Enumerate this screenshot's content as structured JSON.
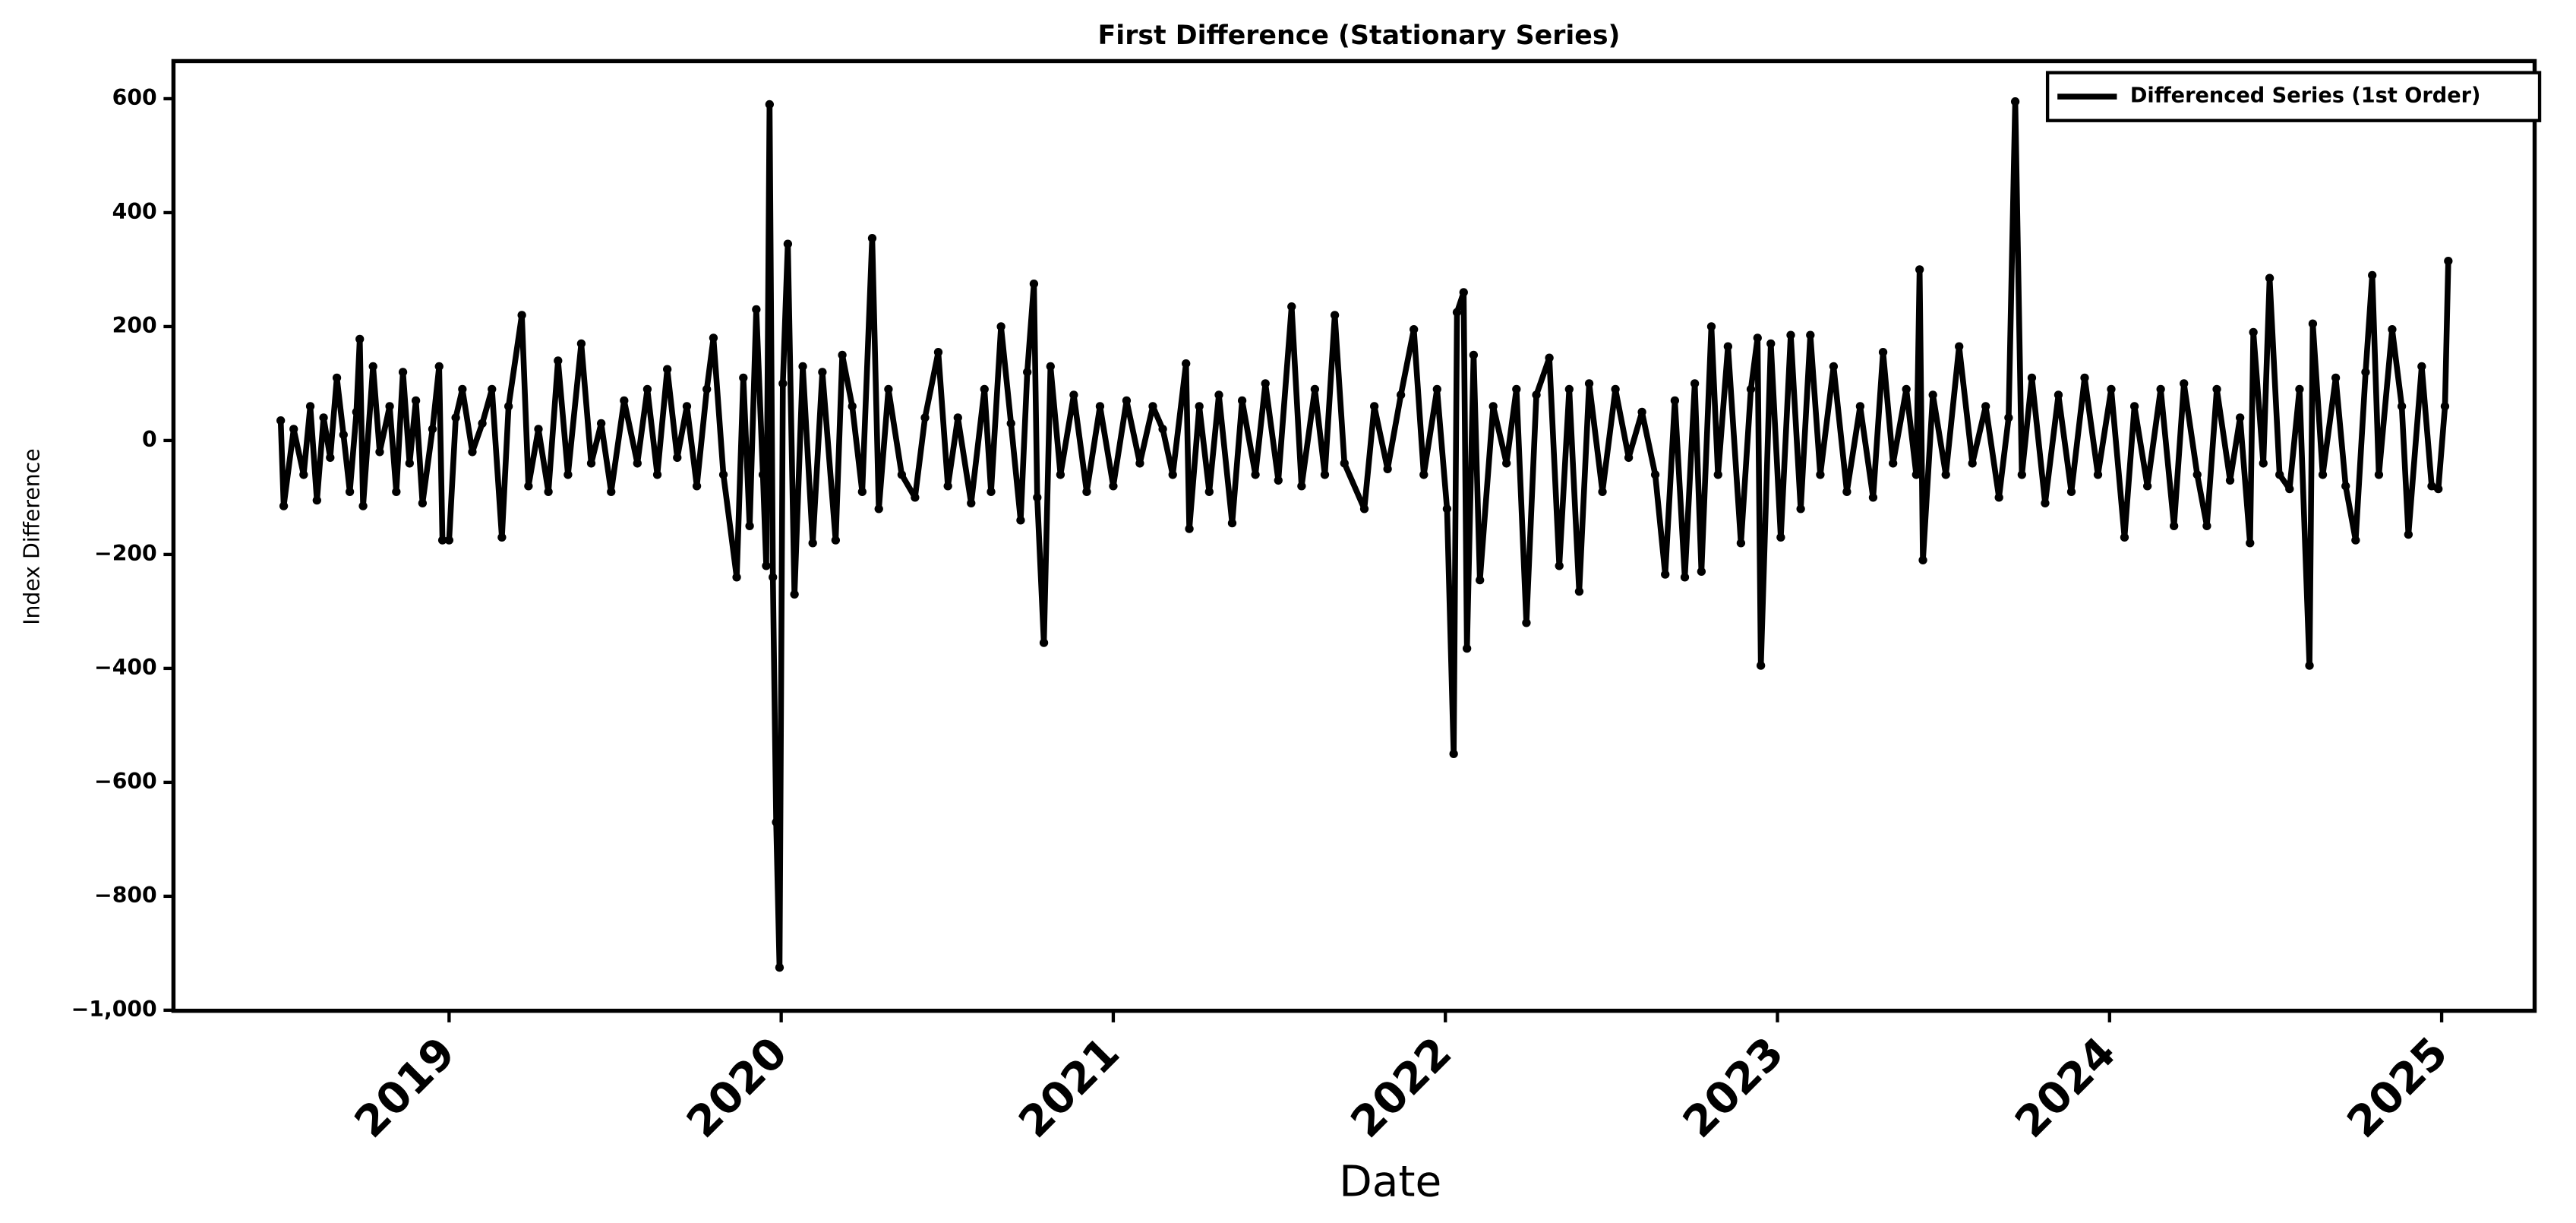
{
  "chart_data": {
    "type": "line",
    "title": "First Difference (Stationary Series)",
    "x_label": "Date",
    "y_label": "Index Difference",
    "x": [
      2018.493,
      2018.502,
      2018.532,
      2018.562,
      2018.582,
      2018.602,
      2018.622,
      2018.642,
      2018.662,
      2018.682,
      2018.701,
      2018.721,
      2018.731,
      2018.741,
      2018.771,
      2018.791,
      2018.821,
      2018.841,
      2018.861,
      2018.881,
      2018.9,
      2018.92,
      2018.95,
      2018.97,
      2018.98,
      2019.0,
      2019.02,
      2019.04,
      2019.07,
      2019.1,
      2019.129,
      2019.159,
      2019.179,
      2019.219,
      2019.239,
      2019.269,
      2019.299,
      2019.328,
      2019.358,
      2019.398,
      2019.428,
      2019.458,
      2019.488,
      2019.527,
      2019.567,
      2019.597,
      2019.627,
      2019.657,
      2019.687,
      2019.716,
      2019.746,
      2019.776,
      2019.796,
      2019.826,
      2019.866,
      2019.886,
      2019.905,
      2019.925,
      2019.945,
      2019.955,
      2019.965,
      2019.975,
      2019.985,
      2019.995,
      2020.005,
      2020.02,
      2020.04,
      2020.065,
      2020.095,
      2020.124,
      2020.164,
      2020.184,
      2020.214,
      2020.244,
      2020.274,
      2020.294,
      2020.323,
      2020.363,
      2020.403,
      2020.433,
      2020.473,
      2020.502,
      2020.532,
      2020.572,
      2020.612,
      2020.632,
      2020.662,
      2020.692,
      2020.721,
      2020.741,
      2020.761,
      2020.771,
      2020.791,
      2020.811,
      2020.841,
      2020.881,
      2020.92,
      2020.96,
      2021.0,
      2021.04,
      2021.08,
      2021.119,
      2021.149,
      2021.179,
      2021.219,
      2021.229,
      2021.259,
      2021.289,
      2021.318,
      2021.358,
      2021.388,
      2021.428,
      2021.458,
      2021.497,
      2021.537,
      2021.567,
      2021.607,
      2021.637,
      2021.667,
      2021.696,
      2021.756,
      2021.786,
      2021.826,
      2021.866,
      2021.905,
      2021.935,
      2021.975,
      2022.005,
      2022.025,
      2022.035,
      2022.055,
      2022.065,
      2022.085,
      2022.104,
      2022.144,
      2022.184,
      2022.214,
      2022.244,
      2022.274,
      2022.313,
      2022.343,
      2022.373,
      2022.403,
      2022.433,
      2022.473,
      2022.512,
      2022.552,
      2022.592,
      2022.632,
      2022.662,
      2022.691,
      2022.721,
      2022.751,
      2022.771,
      2022.801,
      2022.821,
      2022.851,
      2022.89,
      2022.92,
      2022.94,
      2022.95,
      2022.98,
      2023.01,
      2023.04,
      2023.07,
      2023.099,
      2023.129,
      2023.169,
      2023.209,
      2023.249,
      2023.288,
      2023.318,
      2023.348,
      2023.388,
      2023.418,
      2023.428,
      2023.438,
      2023.468,
      2023.507,
      2023.547,
      2023.587,
      2023.627,
      2023.667,
      2023.696,
      2023.716,
      2023.736,
      2023.766,
      2023.806,
      2023.846,
      2023.885,
      2023.925,
      2023.965,
      2024.005,
      2024.045,
      2024.075,
      2024.114,
      2024.154,
      2024.194,
      2024.224,
      2024.264,
      2024.293,
      2024.323,
      2024.363,
      2024.393,
      2024.423,
      2024.433,
      2024.463,
      2024.482,
      2024.512,
      2024.542,
      2024.572,
      2024.602,
      2024.612,
      2024.642,
      2024.681,
      2024.711,
      2024.741,
      2024.771,
      2024.791,
      2024.811,
      2024.851,
      2024.88,
      2024.9,
      2024.94,
      2024.97,
      2024.99,
      2025.01,
      2025.02
    ],
    "series": [
      {
        "name": "Differenced Series (1st Order)",
        "color": "#000000",
        "values": [
          35,
          -115,
          20,
          -60,
          60,
          -105,
          40,
          -30,
          110,
          10,
          -90,
          50,
          178,
          -115,
          130,
          -20,
          60,
          -90,
          120,
          -40,
          70,
          -110,
          20,
          130,
          -175,
          -175,
          40,
          90,
          -20,
          30,
          90,
          -170,
          60,
          220,
          -80,
          20,
          -90,
          140,
          -60,
          170,
          -40,
          30,
          -90,
          70,
          -40,
          90,
          -60,
          125,
          -30,
          60,
          -80,
          90,
          180,
          -60,
          -240,
          110,
          -150,
          230,
          -60,
          -220,
          590,
          -240,
          -670,
          -925,
          100,
          345,
          -270,
          130,
          -180,
          120,
          -175,
          150,
          60,
          -90,
          355,
          -120,
          90,
          -60,
          -100,
          40,
          155,
          -80,
          40,
          -110,
          90,
          -90,
          200,
          30,
          -140,
          120,
          275,
          -100,
          -355,
          130,
          -60,
          80,
          -90,
          60,
          -80,
          70,
          -40,
          60,
          20,
          -60,
          135,
          -155,
          60,
          -90,
          80,
          -145,
          70,
          -60,
          100,
          -70,
          235,
          -80,
          90,
          -60,
          220,
          -40,
          -120,
          60,
          -50,
          80,
          195,
          -60,
          90,
          -120,
          -550,
          225,
          260,
          -365,
          150,
          -245,
          60,
          -40,
          90,
          -320,
          80,
          145,
          -220,
          90,
          -265,
          100,
          -90,
          90,
          -30,
          50,
          -60,
          -235,
          70,
          -240,
          100,
          -230,
          200,
          -60,
          165,
          -180,
          90,
          180,
          -395,
          170,
          -170,
          185,
          -120,
          185,
          -60,
          130,
          -90,
          60,
          -100,
          155,
          -40,
          90,
          -60,
          300,
          -210,
          80,
          -60,
          165,
          -40,
          60,
          -100,
          40,
          595,
          -60,
          110,
          -110,
          80,
          -90,
          110,
          -60,
          90,
          -170,
          60,
          -80,
          90,
          -150,
          100,
          -60,
          -150,
          90,
          -70,
          40,
          -180,
          190,
          -40,
          285,
          -60,
          -85,
          90,
          -395,
          205,
          -60,
          110,
          -80,
          -175,
          120,
          290,
          -60,
          195,
          60,
          -165,
          130,
          -80,
          -85,
          60,
          315
        ]
      }
    ],
    "xlim": [
      2018.17,
      2025.28
    ],
    "xticks": [
      2019,
      2020,
      2021,
      2022,
      2023,
      2024,
      2025
    ],
    "ylim": [
      -1001,
      666
    ],
    "yticks": [
      {
        "value": -1000,
        "label": "−1,000"
      },
      {
        "value": -800,
        "label": "−800"
      },
      {
        "value": -600,
        "label": "−600"
      },
      {
        "value": -400,
        "label": "−400"
      },
      {
        "value": -200,
        "label": "−200"
      },
      0,
      200,
      400,
      600
    ],
    "grid": false,
    "legend": "upper right"
  }
}
